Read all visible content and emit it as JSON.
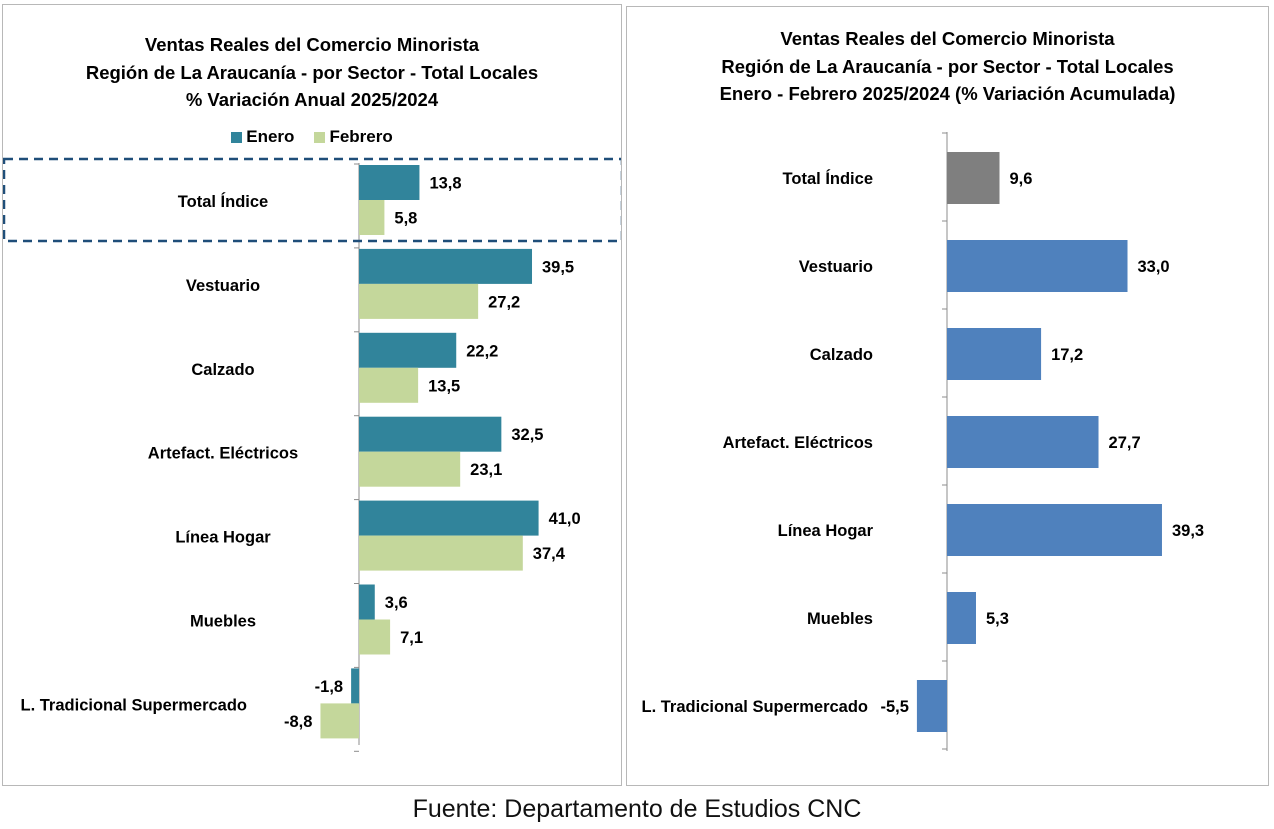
{
  "chart_data": [
    {
      "type": "bar",
      "orientation": "horizontal",
      "title_lines": [
        "Ventas Reales del Comercio Minorista",
        "Región de La Araucanía - por Sector - Total Locales",
        "% Variación Anual 2025/2024"
      ],
      "categories": [
        "Total Índice",
        "Vestuario",
        "Calzado",
        "Artefact. Eléctricos",
        "Línea Hogar",
        "Muebles",
        "L. Tradicional Supermercado"
      ],
      "series": [
        {
          "name": "Enero",
          "color": "#31849b",
          "values": [
            13.8,
            39.5,
            22.2,
            32.5,
            41.0,
            3.6,
            -1.8
          ],
          "labels": [
            "13,8",
            "39,5",
            "22,2",
            "32,5",
            "41,0",
            "3,6",
            "-1,8"
          ]
        },
        {
          "name": "Febrero",
          "color": "#c4d79b",
          "values": [
            5.8,
            27.2,
            13.5,
            23.1,
            37.4,
            7.1,
            -8.8
          ],
          "labels": [
            "5,8",
            "27,2",
            "13,5",
            "23,1",
            "37,4",
            "7,1",
            "-8,8"
          ]
        }
      ],
      "legend_position": "top",
      "highlight_category": "Total Índice",
      "highlight_style": "dashed-box",
      "highlight_color": "#1f4e79",
      "gridlines": false
    },
    {
      "type": "bar",
      "orientation": "horizontal",
      "title_lines": [
        "Ventas Reales del Comercio Minorista",
        "Región de La Araucanía - por Sector - Total Locales",
        "Enero - Febrero 2025/2024 (% Variación Acumulada)"
      ],
      "categories": [
        "Total Índice",
        "Vestuario",
        "Calzado",
        "Artefact. Eléctricos",
        "Línea Hogar",
        "Muebles",
        "L. Tradicional Supermercado"
      ],
      "series": [
        {
          "values": [
            9.6,
            33.0,
            17.2,
            27.7,
            39.3,
            5.3,
            -5.5
          ],
          "labels": [
            "9,6",
            "33,0",
            "17,2",
            "27,7",
            "39,3",
            "5,3",
            "-5,5"
          ]
        }
      ],
      "colors": {
        "default": "#4f81bd",
        "Total Índice": "#7f7f7f"
      },
      "gridlines": false
    }
  ],
  "source": "Fuente: Departamento de Estudios CNC"
}
